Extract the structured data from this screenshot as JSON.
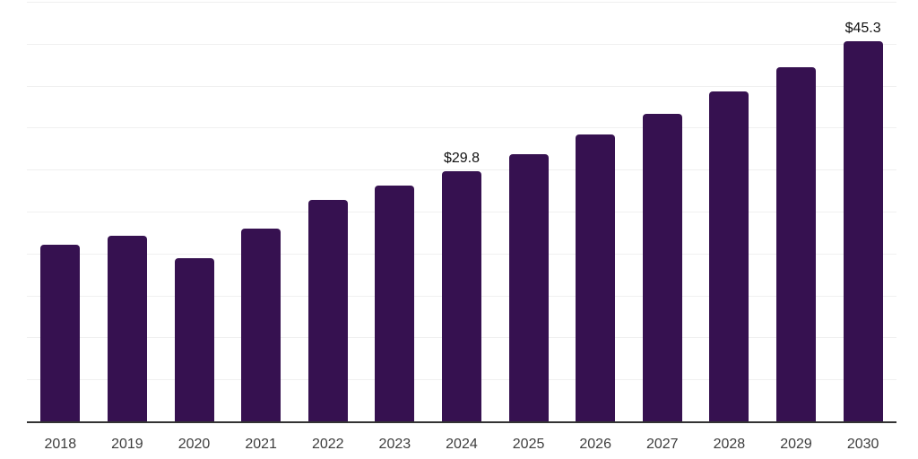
{
  "chart_data": {
    "type": "bar",
    "title": "",
    "xlabel": "",
    "ylabel": "",
    "categories": [
      "2018",
      "2019",
      "2020",
      "2021",
      "2022",
      "2023",
      "2024",
      "2025",
      "2026",
      "2027",
      "2028",
      "2029",
      "2030"
    ],
    "values": [
      21.0,
      22.1,
      19.4,
      23.0,
      26.4,
      28.1,
      29.8,
      31.8,
      34.2,
      36.6,
      39.3,
      42.2,
      45.3
    ],
    "data_labels": {
      "2024": "$29.8",
      "2030": "$45.3"
    },
    "ylim": [
      0,
      50
    ],
    "gridline_step": 5,
    "grid": true,
    "legend": false,
    "colors": {
      "bar": "#361150",
      "gridline": "#f0f0f0",
      "axis_line": "#333333",
      "tick_label": "#3d3d3d",
      "data_label": "#111111",
      "background": "#ffffff"
    }
  }
}
